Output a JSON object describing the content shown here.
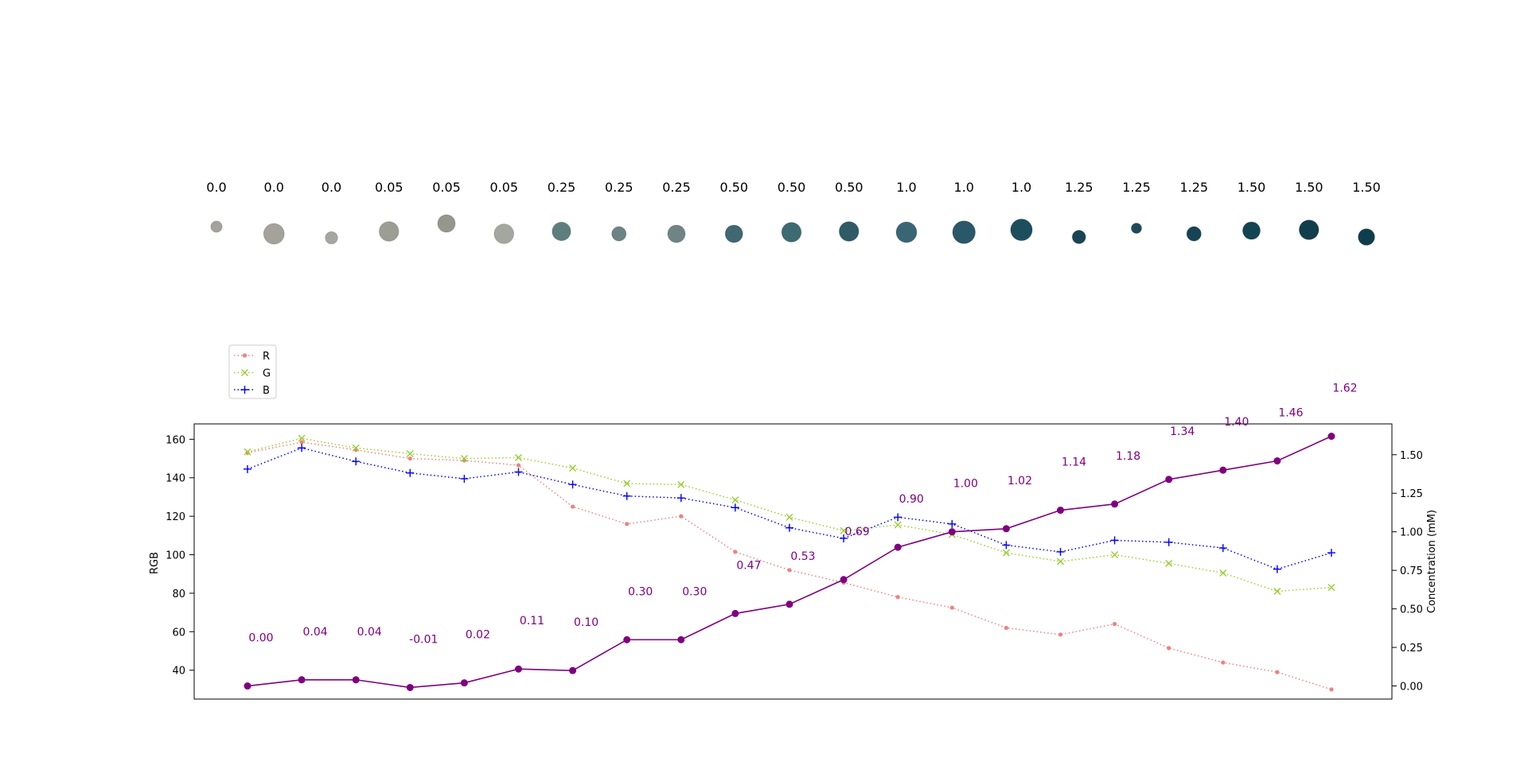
{
  "chart_data": {
    "type": "line",
    "x_count": 21,
    "strip_labels": [
      "0.0",
      "0.0",
      "0.0",
      "0.05",
      "0.05",
      "0.05",
      "0.25",
      "0.25",
      "0.25",
      "0.50",
      "0.50",
      "0.50",
      "1.0",
      "1.0",
      "1.0",
      "1.25",
      "1.25",
      "1.25",
      "1.50",
      "1.50",
      "1.50"
    ],
    "spot_colors": [
      "#a4a49c",
      "#a3a39c",
      "#a6a6a0",
      "#9c9e94",
      "#95968e",
      "#a4a6a0",
      "#5e7e7e",
      "#6e8484",
      "#6f8585",
      "#3f6872",
      "#3e6a74",
      "#2f5a66",
      "#3a6674",
      "#2a5868",
      "#1d4e5e",
      "#1a4454",
      "#1e4a5a",
      "#164454",
      "#134452",
      "#113e4c",
      "#0e3e4e"
    ],
    "spot_sizes": [
      0.55,
      1.0,
      0.6,
      0.95,
      0.85,
      0.95,
      0.9,
      0.7,
      0.85,
      0.85,
      0.95,
      0.95,
      1.0,
      1.1,
      1.05,
      0.65,
      0.5,
      0.7,
      0.85,
      0.95,
      0.8
    ],
    "left_axis": {
      "label": "RGB",
      "ylim": [
        25,
        168
      ],
      "ticks": [
        40,
        60,
        80,
        100,
        120,
        140,
        160
      ]
    },
    "right_axis": {
      "label": "Concentration (mM)",
      "ylim": [
        -0.085,
        1.7
      ],
      "ticks": [
        "0.00",
        "0.25",
        "0.50",
        "0.75",
        "1.00",
        "1.25",
        "1.50"
      ]
    },
    "series": [
      {
        "name": "R",
        "axis": "left",
        "color": "#f08080",
        "marker": "dot",
        "style": "dotted",
        "values": [
          153,
          158.5,
          154.5,
          150,
          149,
          146.5,
          125,
          116,
          120,
          101.5,
          92,
          85.5,
          78,
          72.5,
          62,
          58.5,
          64,
          51.5,
          44,
          39,
          30
        ]
      },
      {
        "name": "G",
        "axis": "left",
        "color": "#9acd32",
        "marker": "x",
        "style": "dotted",
        "values": [
          153.5,
          160.5,
          155.5,
          152.5,
          150,
          150.5,
          145,
          137,
          136.5,
          128.5,
          119.5,
          112.5,
          115.5,
          110.5,
          101,
          96.5,
          100,
          95.5,
          90.5,
          81,
          83
        ]
      },
      {
        "name": "B",
        "axis": "left",
        "color": "#0000ff",
        "marker": "plus",
        "style": "dotted",
        "values": [
          144.5,
          155.5,
          148.5,
          142.5,
          139.5,
          143,
          136.5,
          130.5,
          129.5,
          124.5,
          114,
          108.5,
          119.5,
          116,
          105,
          101.5,
          107.5,
          106.5,
          103.5,
          92.5,
          101
        ]
      },
      {
        "name": "Concentration",
        "axis": "right",
        "color": "#800080",
        "marker": "dot",
        "style": "solid",
        "values": [
          0.0,
          0.04,
          0.04,
          -0.01,
          0.02,
          0.11,
          0.1,
          0.3,
          0.3,
          0.47,
          0.53,
          0.69,
          0.9,
          1.0,
          1.02,
          1.14,
          1.18,
          1.34,
          1.4,
          1.46,
          1.62
        ],
        "labels": [
          "0.00",
          "0.04",
          "0.04",
          "-0.01",
          "0.02",
          "0.11",
          "0.10",
          "0.30",
          "0.30",
          "0.47",
          "0.53",
          "0.69",
          "0.90",
          "1.00",
          "1.02",
          "1.14",
          "1.18",
          "1.34",
          "1.40",
          "1.46",
          "1.62"
        ]
      }
    ],
    "legend": {
      "position": "top-left, outside above plot",
      "entries": [
        "R",
        "G",
        "B"
      ]
    }
  }
}
